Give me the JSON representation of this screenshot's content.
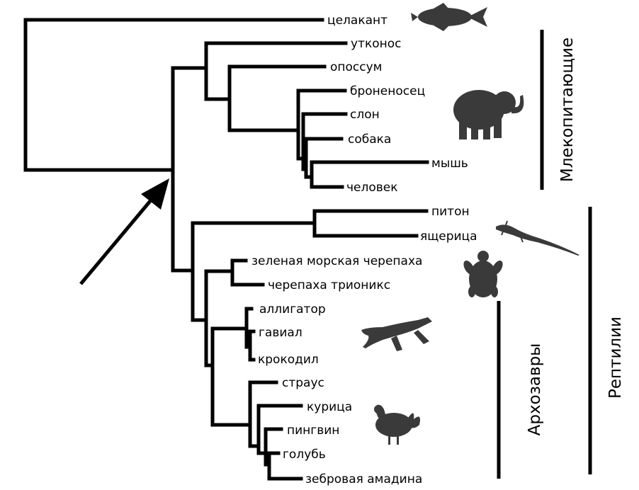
{
  "taxa": {
    "coelacanth": "целакант",
    "platypus": "утконос",
    "opossum": "опоссум",
    "armadillo": "броненосец",
    "elephant": "слон",
    "dog": "собака",
    "mouse": "мышь",
    "human": "человек",
    "python": "питон",
    "lizard": "ящерица",
    "green_turtle": "зеленая морская черепаха",
    "softshell_turtle": "черепаха трионикс",
    "alligator": "аллигатор",
    "gharial": "гавиал",
    "crocodile": "крокодил",
    "ostrich": "страус",
    "chicken": "курица",
    "penguin": "пингвин",
    "pigeon": "голубь",
    "zebra_finch": "зебровая амадина"
  },
  "groups": {
    "mammals": "Млекопитающие",
    "reptiles": "Рептилии",
    "archosaurs": "Архозавры"
  },
  "silhouettes": [
    "fish-icon",
    "elephant-icon",
    "lizard-icon",
    "turtle-icon",
    "crocodile-icon",
    "rooster-icon"
  ],
  "colors": {
    "lines": "#000000",
    "silhouettes": "#3a3a3a"
  }
}
